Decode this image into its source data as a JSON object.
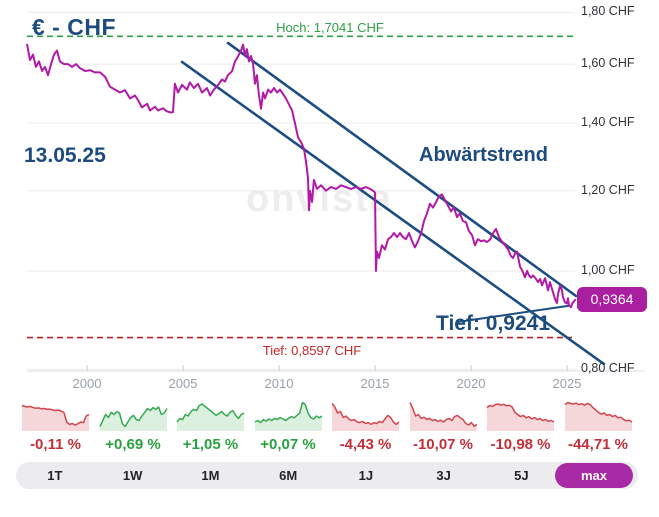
{
  "header": {
    "title": "€ - CHF",
    "date_label": "13.05.25"
  },
  "watermark": "onvista",
  "colors": {
    "navy_text": "#1d4b7f",
    "price_line": "#b01aa7",
    "trend_line": "#1d4e82",
    "positive_green": "#28a23e",
    "negative_red": "#c42e39",
    "badge_purple": "#aa1f9f",
    "active_button_purple": "#a82aa5"
  },
  "chart_data": {
    "type": "line",
    "title": "€ - CHF",
    "unit": "CHF",
    "scale": "log",
    "grid": true,
    "x_ticks": [
      2000,
      2005,
      2010,
      2015,
      2020,
      2025
    ],
    "y_ticks": [
      {
        "value": 1.8,
        "label": "1,80 CHF"
      },
      {
        "value": 1.6,
        "label": "1,60 CHF"
      },
      {
        "value": 1.4,
        "label": "1,40 CHF"
      },
      {
        "value": 1.2,
        "label": "1,20 CHF"
      },
      {
        "value": 1.0,
        "label": "1,00 CHF"
      },
      {
        "value": 0.8,
        "label": "0,80 CHF"
      }
    ],
    "series": [
      {
        "name": "EUR/CHF",
        "color": "#b01aa7",
        "points": [
          [
            1996.88,
            1.672
          ],
          [
            1997.03,
            1.615
          ],
          [
            1997.19,
            1.635
          ],
          [
            1997.34,
            1.59
          ],
          [
            1997.5,
            1.61
          ],
          [
            1997.66,
            1.575
          ],
          [
            1997.81,
            1.59
          ],
          [
            1997.97,
            1.56
          ],
          [
            1998.13,
            1.6
          ],
          [
            1998.28,
            1.635
          ],
          [
            1998.44,
            1.65
          ],
          [
            1998.59,
            1.61
          ],
          [
            1998.8,
            1.6
          ],
          [
            1999.01,
            1.6
          ],
          [
            1999.22,
            1.59
          ],
          [
            1999.43,
            1.6
          ],
          [
            1999.64,
            1.585
          ],
          [
            1999.9,
            1.575
          ],
          [
            2000.16,
            1.578
          ],
          [
            2000.42,
            1.57
          ],
          [
            2000.68,
            1.57
          ],
          [
            2000.94,
            1.555
          ],
          [
            2001.2,
            1.52
          ],
          [
            2001.46,
            1.51
          ],
          [
            2001.72,
            1.5
          ],
          [
            2001.98,
            1.508
          ],
          [
            2002.24,
            1.48
          ],
          [
            2002.5,
            1.49
          ],
          [
            2002.66,
            1.474
          ],
          [
            2002.86,
            1.45
          ],
          [
            2003.13,
            1.462
          ],
          [
            2003.28,
            1.44
          ],
          [
            2003.54,
            1.452
          ],
          [
            2003.7,
            1.44
          ],
          [
            2003.96,
            1.447
          ],
          [
            2004.17,
            1.437
          ],
          [
            2004.38,
            1.433
          ],
          [
            2004.48,
            1.435
          ],
          [
            2004.58,
            1.53
          ],
          [
            2004.74,
            1.5
          ],
          [
            2004.95,
            1.526
          ],
          [
            2005.21,
            1.51
          ],
          [
            2005.36,
            1.535
          ],
          [
            2005.57,
            1.515
          ],
          [
            2005.78,
            1.53
          ],
          [
            2005.99,
            1.5
          ],
          [
            2006.25,
            1.515
          ],
          [
            2006.41,
            1.49
          ],
          [
            2006.61,
            1.51
          ],
          [
            2006.82,
            1.525
          ],
          [
            2007.03,
            1.545
          ],
          [
            2007.19,
            1.538
          ],
          [
            2007.34,
            1.56
          ],
          [
            2007.55,
            1.574
          ],
          [
            2007.71,
            1.61
          ],
          [
            2007.86,
            1.627
          ],
          [
            2008.02,
            1.65
          ],
          [
            2008.13,
            1.672
          ],
          [
            2008.23,
            1.63
          ],
          [
            2008.33,
            1.655
          ],
          [
            2008.44,
            1.61
          ],
          [
            2008.54,
            1.63
          ],
          [
            2008.65,
            1.6
          ],
          [
            2008.75,
            1.53
          ],
          [
            2008.85,
            1.56
          ],
          [
            2008.96,
            1.49
          ],
          [
            2009.06,
            1.446
          ],
          [
            2009.17,
            1.5
          ],
          [
            2009.27,
            1.48
          ],
          [
            2009.43,
            1.51
          ],
          [
            2009.58,
            1.5
          ],
          [
            2009.74,
            1.515
          ],
          [
            2009.9,
            1.5
          ],
          [
            2010.05,
            1.51
          ],
          [
            2010.21,
            1.495
          ],
          [
            2010.36,
            1.48
          ],
          [
            2010.52,
            1.46
          ],
          [
            2010.68,
            1.44
          ],
          [
            2010.83,
            1.4
          ],
          [
            2010.99,
            1.355
          ],
          [
            2011.15,
            1.34
          ],
          [
            2011.3,
            1.32
          ],
          [
            2011.41,
            1.28
          ],
          [
            2011.51,
            1.235
          ],
          [
            2011.56,
            1.148
          ],
          [
            2011.61,
            1.2
          ],
          [
            2011.72,
            1.17
          ],
          [
            2011.82,
            1.23
          ],
          [
            2011.98,
            1.205
          ],
          [
            2012.19,
            1.215
          ],
          [
            2012.45,
            1.2
          ],
          [
            2012.71,
            1.21
          ],
          [
            2012.97,
            1.205
          ],
          [
            2013.23,
            1.215
          ],
          [
            2013.49,
            1.21
          ],
          [
            2013.75,
            1.205
          ],
          [
            2014.01,
            1.21
          ],
          [
            2014.27,
            1.205
          ],
          [
            2014.53,
            1.21
          ],
          [
            2014.74,
            1.205
          ],
          [
            2014.9,
            1.2
          ],
          [
            2015.0,
            1.195
          ],
          [
            2015.05,
            1.0
          ],
          [
            2015.1,
            1.045
          ],
          [
            2015.21,
            1.03
          ],
          [
            2015.36,
            1.06
          ],
          [
            2015.52,
            1.05
          ],
          [
            2015.68,
            1.075
          ],
          [
            2015.83,
            1.08
          ],
          [
            2015.99,
            1.09
          ],
          [
            2016.15,
            1.08
          ],
          [
            2016.3,
            1.09
          ],
          [
            2016.46,
            1.08
          ],
          [
            2016.61,
            1.075
          ],
          [
            2016.77,
            1.09
          ],
          [
            2016.93,
            1.07
          ],
          [
            2017.08,
            1.055
          ],
          [
            2017.24,
            1.07
          ],
          [
            2017.4,
            1.09
          ],
          [
            2017.55,
            1.12
          ],
          [
            2017.71,
            1.14
          ],
          [
            2017.86,
            1.165
          ],
          [
            2018.02,
            1.155
          ],
          [
            2018.18,
            1.17
          ],
          [
            2018.33,
            1.185
          ],
          [
            2018.49,
            1.19
          ],
          [
            2018.64,
            1.175
          ],
          [
            2018.8,
            1.16
          ],
          [
            2018.96,
            1.145
          ],
          [
            2019.11,
            1.155
          ],
          [
            2019.27,
            1.13
          ],
          [
            2019.42,
            1.14
          ],
          [
            2019.58,
            1.12
          ],
          [
            2019.74,
            1.117
          ],
          [
            2019.89,
            1.095
          ],
          [
            2020.05,
            1.085
          ],
          [
            2020.21,
            1.06
          ],
          [
            2020.36,
            1.075
          ],
          [
            2020.52,
            1.07
          ],
          [
            2020.68,
            1.072
          ],
          [
            2020.83,
            1.068
          ],
          [
            2020.99,
            1.074
          ],
          [
            2021.15,
            1.09
          ],
          [
            2021.3,
            1.1
          ],
          [
            2021.46,
            1.08
          ],
          [
            2021.61,
            1.069
          ],
          [
            2021.77,
            1.06
          ],
          [
            2021.93,
            1.05
          ],
          [
            2022.08,
            1.035
          ],
          [
            2022.19,
            1.03
          ],
          [
            2022.29,
            1.04
          ],
          [
            2022.4,
            1.045
          ],
          [
            2022.55,
            1.01
          ],
          [
            2022.66,
            1.002
          ],
          [
            2022.81,
            0.986
          ],
          [
            2022.92,
            1.0
          ],
          [
            2023.02,
            0.99
          ],
          [
            2023.13,
            0.985
          ],
          [
            2023.23,
            0.99
          ],
          [
            2023.39,
            0.982
          ],
          [
            2023.49,
            0.975
          ],
          [
            2023.6,
            0.982
          ],
          [
            2023.7,
            0.968
          ],
          [
            2023.86,
            0.984
          ],
          [
            2024.01,
            0.957
          ],
          [
            2024.11,
            0.975
          ],
          [
            2024.22,
            0.96
          ],
          [
            2024.38,
            0.938
          ],
          [
            2024.48,
            0.93
          ],
          [
            2024.53,
            0.949
          ],
          [
            2024.64,
            0.967
          ],
          [
            2024.74,
            0.957
          ],
          [
            2024.79,
            0.942
          ],
          [
            2024.9,
            0.931
          ],
          [
            2025.0,
            0.929
          ],
          [
            2025.05,
            0.94
          ],
          [
            2025.1,
            0.925
          ],
          [
            2025.21,
            0.921
          ],
          [
            2025.26,
            0.928
          ],
          [
            2025.31,
            0.931
          ],
          [
            2025.42,
            0.9364
          ]
        ]
      }
    ],
    "annotations": {
      "high_line": {
        "label": "Hoch: 1,7041 CHF",
        "value": 1.7041,
        "color": "#2f9e44"
      },
      "low_line": {
        "label": "Tief: 0,8597 CHF",
        "value": 0.8597,
        "color": "#c22727"
      },
      "trend_label": {
        "text": "Abwärtstrend"
      },
      "low_label": {
        "text": "Tief: 0,9241",
        "value": 0.9241
      },
      "last_price_badge": {
        "text": "0,9364",
        "value": 0.9364,
        "color": "#aa1f9f"
      },
      "trend_lines": [
        {
          "name": "upper-channel",
          "points": [
            [
              2007.34,
              1.6787
            ],
            [
              2025.47,
              0.9448
            ]
          ]
        },
        {
          "name": "lower-channel",
          "points": [
            [
              2004.95,
              1.6079
            ],
            [
              2026.92,
              0.8096
            ]
          ]
        },
        {
          "name": "low-pointer",
          "points": [
            [
              2019.3,
              0.8905
            ],
            [
              2025.1,
              0.9241
            ]
          ]
        }
      ]
    }
  },
  "sparklines": [
    {
      "label": "-0,11 %",
      "trend": "down",
      "values": [
        0.85,
        0.82,
        0.8,
        0.82,
        0.78,
        0.76,
        0.77,
        0.74,
        0.75,
        0.72,
        0.73,
        0.7,
        0.68,
        0.7,
        0.66,
        0.62,
        0.3,
        0.22,
        0.25,
        0.2,
        0.24,
        0.3,
        0.28,
        0.5,
        0.55
      ]
    },
    {
      "label": "+0,69 %",
      "trend": "up",
      "values": [
        0.15,
        0.35,
        0.55,
        0.45,
        0.62,
        0.55,
        0.65,
        0.6,
        0.25,
        0.15,
        0.3,
        0.45,
        0.52,
        0.38,
        0.35,
        0.5,
        0.62,
        0.75,
        0.68,
        0.78,
        0.72,
        0.8,
        0.55,
        0.6,
        0.75
      ]
    },
    {
      "label": "+1,05 %",
      "trend": "up",
      "values": [
        0.3,
        0.42,
        0.38,
        0.55,
        0.5,
        0.65,
        0.72,
        0.68,
        0.85,
        0.9,
        0.82,
        0.75,
        0.68,
        0.6,
        0.52,
        0.58,
        0.65,
        0.55,
        0.5,
        0.62,
        0.68,
        0.52,
        0.42,
        0.55,
        0.6
      ]
    },
    {
      "label": "+0,07 %",
      "trend": "up",
      "values": [
        0.3,
        0.35,
        0.28,
        0.38,
        0.33,
        0.4,
        0.35,
        0.42,
        0.38,
        0.45,
        0.4,
        0.35,
        0.42,
        0.48,
        0.44,
        0.52,
        0.6,
        0.95,
        0.88,
        0.6,
        0.45,
        0.4,
        0.5,
        0.44,
        0.5
      ]
    },
    {
      "label": "-4,43 %",
      "trend": "down",
      "values": [
        0.92,
        0.8,
        0.6,
        0.65,
        0.45,
        0.5,
        0.4,
        0.35,
        0.38,
        0.3,
        0.28,
        0.32,
        0.25,
        0.28,
        0.22,
        0.28,
        0.25,
        0.32,
        0.28,
        0.4,
        0.52,
        0.45,
        0.3,
        0.22,
        0.3
      ]
    },
    {
      "label": "-10,07 %",
      "trend": "down",
      "values": [
        0.95,
        0.75,
        0.5,
        0.55,
        0.42,
        0.46,
        0.38,
        0.42,
        0.35,
        0.38,
        0.32,
        0.36,
        0.3,
        0.38,
        0.42,
        0.35,
        0.48,
        0.52,
        0.44,
        0.38,
        0.25,
        0.2,
        0.28,
        0.16,
        0.22
      ]
    },
    {
      "label": "-10,98 %",
      "trend": "down",
      "values": [
        0.78,
        0.85,
        0.82,
        0.88,
        0.9,
        0.86,
        0.89,
        0.84,
        0.86,
        0.8,
        0.62,
        0.55,
        0.48,
        0.52,
        0.44,
        0.48,
        0.4,
        0.45,
        0.38,
        0.42,
        0.35,
        0.38,
        0.32,
        0.35,
        0.3
      ]
    },
    {
      "label": "-44,71 %",
      "trend": "down",
      "values": [
        0.88,
        0.95,
        0.92,
        0.9,
        0.93,
        0.88,
        0.91,
        0.86,
        0.92,
        0.88,
        0.78,
        0.7,
        0.62,
        0.56,
        0.6,
        0.52,
        0.55,
        0.48,
        0.52,
        0.44,
        0.46,
        0.38,
        0.34,
        0.36,
        0.3
      ]
    }
  ],
  "periods": {
    "buttons": [
      {
        "label": "1T"
      },
      {
        "label": "1W"
      },
      {
        "label": "1M"
      },
      {
        "label": "6M"
      },
      {
        "label": "1J"
      },
      {
        "label": "3J"
      },
      {
        "label": "5J"
      },
      {
        "label": "max",
        "active": true
      }
    ]
  }
}
